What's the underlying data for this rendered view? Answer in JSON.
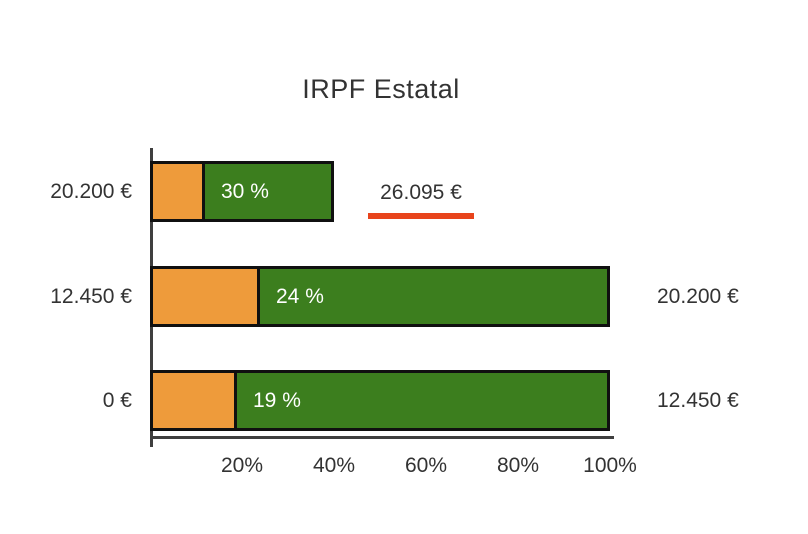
{
  "title": "IRPF Estatal",
  "annotation": {
    "text": "26.095 €",
    "underline_color": "#E8441C"
  },
  "chart_data": {
    "type": "bar",
    "orientation": "horizontal",
    "title": "IRPF Estatal",
    "xlabel": "",
    "ylabel": "",
    "x_axis": {
      "range": [
        0,
        100
      ],
      "unit": "%",
      "ticks": [
        {
          "label": "20%",
          "value": 20
        },
        {
          "label": "40%",
          "value": 40
        },
        {
          "label": "60%",
          "value": 60
        },
        {
          "label": "80%",
          "value": 80
        },
        {
          "label": "100%",
          "value": 100
        }
      ]
    },
    "rows": [
      {
        "left_label": "20.200 €",
        "rate_label": "30 %",
        "rate_pct": 30,
        "orange_pct": 12,
        "total_pct": 40,
        "right_label": ""
      },
      {
        "left_label": "12.450 €",
        "rate_label": "24 %",
        "rate_pct": 24,
        "orange_pct": 24,
        "total_pct": 100,
        "right_label": "20.200 €"
      },
      {
        "left_label": "0 €",
        "rate_label": "19 %",
        "rate_pct": 19,
        "orange_pct": 19,
        "total_pct": 100,
        "right_label": "12.450 €"
      }
    ],
    "annotation": {
      "text": "26.095 €",
      "attached_to_row": 0
    },
    "legend": "none",
    "grid": "off"
  },
  "colors": {
    "background": "#ffffff",
    "text": "#333333",
    "orange": "#EE9B3B",
    "green": "#3C7E1E",
    "bar_border": "#101010",
    "axis": "#3f3f3f",
    "bar_label_text": "#ffffff",
    "annotation_underline": "#E8441C"
  }
}
